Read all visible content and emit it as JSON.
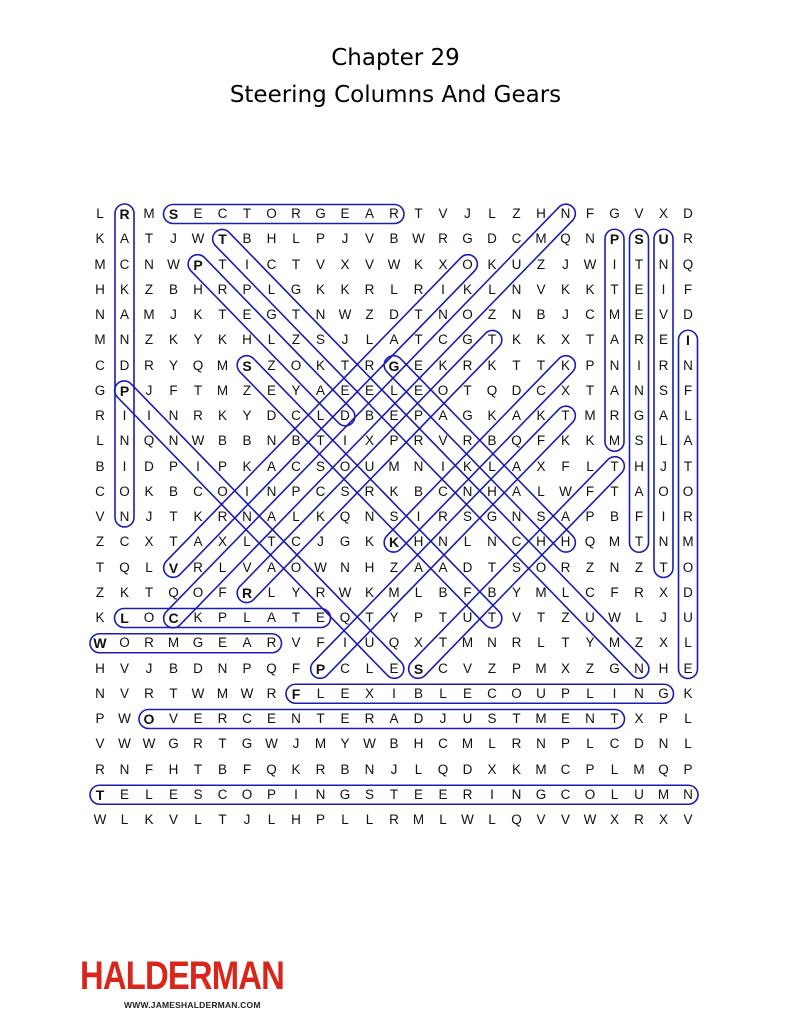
{
  "header": {
    "chapter": "Chapter 29",
    "subtitle": "Steering Columns And Gears"
  },
  "grid": {
    "rows": [
      "LRMSECTORGEARTVJLZHNFGVXD",
      "KATJWTBHLPJVBWRGDCMQNPSUR",
      "MCNWPTICTVXVWKXOKUZJWITNQ",
      "HKZBHRPLGKKRLRIKLNVKKTEIF",
      "NAMJKTEGTNWZDTNOZNBJCMEVD",
      "MNZKYKHLZSJLATCGTKKXTAREI",
      "CDRYQMSZOKTRGEKRKTTKPNIRN",
      "GPJFTMZEYAEELEOTQDCXTANSF",
      "RIINRKYDCLDBEPAGKAKTMRGAL",
      "LNQNWBBNBTIXPRVRBQFKKMSLA",
      "BIDPIPKACSOUMNIKLAXFLTHJT",
      "COKBCOINPCSRKBCNHALWFTAOO",
      "VNJTKRNALKQNSIRSGNSAPBFIR",
      "ZCXTAXLTCJGKKHNLNCHHQMTNM",
      "TQLVRLVAOWNHZAADTSORZNZTO",
      "ZKTQOFRLYRWKMLBFBYMLCFRXD",
      "KLOCKPLATEQTYPTUTVTZUWLJU",
      "WORMGEARVFIUQXTMNRLTYMZXL",
      "HVJBDNPQFPCLESCVZPMXZGNHE",
      "NVRTWMWRFLEXIBLECOUPLINGK",
      "PWOVERCENTERADJUSTMENTXPL",
      "VWWGRTGWJMYWBHCMLRNPLCDNL",
      "RNFHTBFQKRBNJLQDXKMCPLMQP",
      "TELESCOPINGSTEERINGCOLUMN",
      "WLKVLTJLHPLLRMLWLQVVWXRXV"
    ],
    "found_words": [
      {
        "start": [
          0,
          3
        ],
        "end": [
          0,
          12
        ]
      },
      {
        "start": [
          0,
          1
        ],
        "end": [
          12,
          1
        ]
      },
      {
        "start": [
          1,
          21
        ],
        "end": [
          9,
          21
        ]
      },
      {
        "start": [
          1,
          22
        ],
        "end": [
          13,
          22
        ]
      },
      {
        "start": [
          1,
          23
        ],
        "end": [
          14,
          23
        ]
      },
      {
        "start": [
          5,
          24
        ],
        "end": [
          18,
          24
        ]
      },
      {
        "start": [
          16,
          1
        ],
        "end": [
          16,
          9
        ]
      },
      {
        "start": [
          17,
          0
        ],
        "end": [
          17,
          7
        ]
      },
      {
        "start": [
          19,
          8
        ],
        "end": [
          19,
          23
        ]
      },
      {
        "start": [
          20,
          2
        ],
        "end": [
          20,
          21
        ]
      },
      {
        "start": [
          23,
          0
        ],
        "end": [
          23,
          24
        ]
      },
      {
        "start": [
          1,
          5
        ],
        "end": [
          18,
          22
        ]
      },
      {
        "start": [
          2,
          4
        ],
        "end": [
          8,
          10
        ]
      },
      {
        "start": [
          6,
          6
        ],
        "end": [
          16,
          16
        ]
      },
      {
        "start": [
          6,
          12
        ],
        "end": [
          13,
          19
        ]
      },
      {
        "start": [
          7,
          1
        ],
        "end": [
          18,
          12
        ]
      },
      {
        "start": [
          16,
          3
        ],
        "end": [
          0,
          19
        ]
      },
      {
        "start": [
          14,
          3
        ],
        "end": [
          2,
          15
        ]
      },
      {
        "start": [
          15,
          6
        ],
        "end": [
          5,
          16
        ]
      },
      {
        "start": [
          13,
          12
        ],
        "end": [
          6,
          19
        ]
      },
      {
        "start": [
          18,
          9
        ],
        "end": [
          8,
          19
        ]
      },
      {
        "start": [
          18,
          13
        ],
        "end": [
          10,
          21
        ]
      }
    ],
    "highlight_color": "#1c1cb0"
  },
  "footer": {
    "logo": "HALDERMAN",
    "url": "WWW.JAMESHALDERMAN.COM",
    "logo_color": "#d9261c"
  }
}
